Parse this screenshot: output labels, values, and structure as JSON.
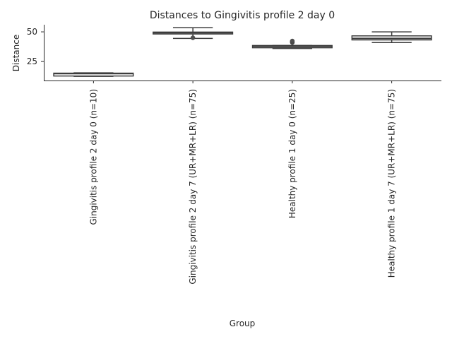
{
  "chart_data": {
    "type": "box",
    "title": "Distances to Gingivitis profile 2 day 0",
    "xlabel": "Group",
    "ylabel": "Distance",
    "ylim": [
      9,
      56
    ],
    "yticks": [
      25,
      50
    ],
    "grid": false,
    "categories": [
      "Gingivitis profile 2 day 0 (n=10)",
      "Gingivitis profile 2 day 7 (UR+MR+LR) (n=75)",
      "Healthy profile 1 day 0 (n=25)",
      "Healthy profile 1 day 7 (UR+MR+LR) (n=75)"
    ],
    "boxes": [
      {
        "whislo": 12.5,
        "q1": 12.8,
        "med": 14.8,
        "q3": 15.2,
        "whishi": 15.5,
        "fliers": []
      },
      {
        "whislo": 44.5,
        "q1": 48.2,
        "med": 49.2,
        "q3": 49.8,
        "whishi": 53.5,
        "fliers": [
          45.0
        ]
      },
      {
        "whislo": 36.0,
        "q1": 36.6,
        "med": 37.8,
        "q3": 38.5,
        "whishi": 38.5,
        "fliers": [
          41.0,
          41.6,
          42.3
        ]
      },
      {
        "whislo": 41.0,
        "q1": 43.2,
        "med": 44.5,
        "q3": 46.6,
        "whishi": 50.0,
        "fliers": []
      }
    ]
  }
}
